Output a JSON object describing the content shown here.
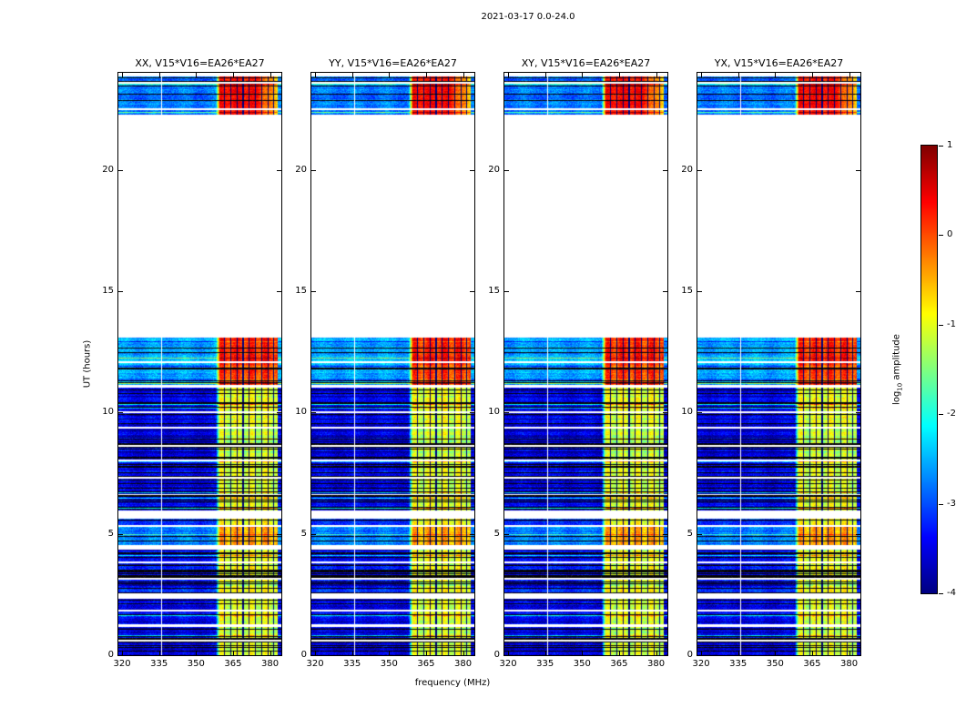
{
  "title": "2021-03-17 0.0-24.0",
  "chart_data": {
    "type": "heatmap",
    "subtype": "dynamic-spectrum-waterfall",
    "colormap": "jet",
    "background_color": "#ffffff",
    "frame_color": "#000000",
    "panels": [
      {
        "label": "XX, V15*V16=EA26*EA27",
        "seed": 11
      },
      {
        "label": "YY, V15*V16=EA26*EA27",
        "seed": 22
      },
      {
        "label": "XY, V15*V16=EA26*EA27",
        "seed": 33
      },
      {
        "label": "YX, V15*V16=EA26*EA27",
        "seed": 44
      }
    ],
    "x_axis": {
      "label": "frequency (MHz)",
      "range": [
        318.5,
        384.6
      ],
      "ticks": [
        320,
        335,
        350,
        365,
        380
      ]
    },
    "y_axis": {
      "label": "UT (hours)",
      "range": [
        0,
        24
      ],
      "ticks": [
        0,
        5,
        10,
        15,
        20
      ]
    },
    "colorbar": {
      "label": "log10 amplitude",
      "label_prefix": "log",
      "label_sub": "10",
      "label_suffix": " amplitude",
      "range": [
        -4,
        1
      ],
      "ticks": [
        1,
        0,
        -1,
        -2,
        -3,
        -4
      ]
    },
    "no_data_interval_hours": [
      13.08,
      22.28
    ],
    "bright_band_mhz": [
      359.6,
      383.2
    ],
    "rfi_channels_mhz": [
      361.6,
      364.1,
      366.6,
      369.1,
      371.6,
      374.1,
      376.6,
      379.1,
      381.6
    ],
    "blank_channel_mhz": 336.2,
    "scans": [
      {
        "t0": 0.0,
        "t1": 0.55,
        "base": -3.5,
        "band": -1.05,
        "flagp": 0.3
      },
      {
        "t0": 0.62,
        "t1": 1.18,
        "base": -3.45,
        "band": -1.1,
        "flagp": 0.3
      },
      {
        "t0": 1.27,
        "t1": 1.8,
        "base": -3.4,
        "band": -1.0,
        "flagp": 0.28
      },
      {
        "t0": 1.86,
        "t1": 2.33,
        "base": -3.45,
        "band": -1.05,
        "flagp": 0.3
      },
      {
        "t0": 2.55,
        "t1": 3.12,
        "base": -3.15,
        "band": -0.9,
        "flagp": 0.22
      },
      {
        "t0": 3.2,
        "t1": 3.8,
        "base": -3.4,
        "band": -1.0,
        "flagp": 0.28
      },
      {
        "t0": 3.85,
        "t1": 4.35,
        "base": -3.35,
        "band": -0.95,
        "flagp": 0.26
      },
      {
        "t0": 4.55,
        "t1": 5.3,
        "base": -2.8,
        "band": -0.5,
        "flagp": 0.12
      },
      {
        "t0": 5.36,
        "t1": 5.62,
        "base": -3.1,
        "band": -0.85,
        "flagp": 0.2
      },
      {
        "t0": 5.95,
        "t1": 6.6,
        "base": -3.45,
        "band": -1.05,
        "flagp": 0.32
      },
      {
        "t0": 6.65,
        "t1": 7.28,
        "base": -3.5,
        "band": -1.1,
        "flagp": 0.32
      },
      {
        "t0": 7.35,
        "t1": 8.0,
        "base": -3.45,
        "band": -1.05,
        "flagp": 0.32
      },
      {
        "t0": 8.05,
        "t1": 8.6,
        "base": -3.5,
        "band": -1.1,
        "flagp": 0.34
      },
      {
        "t0": 8.68,
        "t1": 9.35,
        "base": -3.55,
        "band": -1.1,
        "flagp": 0.34
      },
      {
        "t0": 9.4,
        "t1": 9.98,
        "base": -3.55,
        "band": -1.05,
        "flagp": 0.34
      },
      {
        "t0": 10.05,
        "t1": 11.02,
        "base": -3.45,
        "band": -1.0,
        "flagp": 0.3
      },
      {
        "t0": 11.12,
        "t1": 12.02,
        "base": -2.6,
        "band": 0.05,
        "flagp": 0.1
      },
      {
        "t0": 12.1,
        "t1": 13.08,
        "base": -2.55,
        "band": 0.2,
        "flagp": 0.08
      },
      {
        "t0": 22.28,
        "t1": 22.46,
        "base": -2.8,
        "band": 0.3,
        "flagp": 0.1,
        "shape": "taper"
      },
      {
        "t0": 22.55,
        "t1": 23.55,
        "base": -2.8,
        "band": 0.35,
        "flagp": 0.1,
        "shape": "taper"
      },
      {
        "t0": 23.64,
        "t1": 23.86,
        "base": -2.85,
        "band": 0.3,
        "flagp": 0.1,
        "shape": "taper"
      }
    ]
  }
}
